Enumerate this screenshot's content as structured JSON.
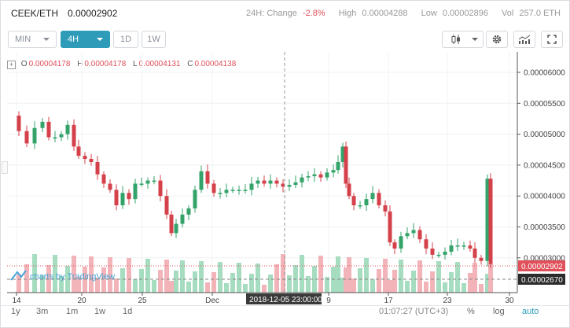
{
  "header": {
    "pair": "CEEK/ETH",
    "price": "0.00002902",
    "change_label": "24H: Change",
    "change_value": "-2.8%",
    "high_label": "High",
    "high_value": "0.00004288",
    "low_label": "Low",
    "low_value": "0.00002896",
    "vol_label": "Vol",
    "vol_value": "257.0 ETH"
  },
  "toolbar": {
    "min_label": "MIN",
    "interval_label": "4H",
    "day_label": "1D",
    "week_label": "1W",
    "icons": [
      "candlestick-icon",
      "gear-icon",
      "indicators-icon",
      "fullscreen-icon"
    ]
  },
  "ohlc": {
    "o_label": "O",
    "o_value": "0.00004178",
    "h_label": "H",
    "h_value": "0.00004178",
    "l_label": "L",
    "l_value": "0.00004131",
    "c_label": "C",
    "c_value": "0.00004138"
  },
  "y_axis": {
    "ticks": [
      "0.00006000",
      "0.00005500",
      "0.00005000",
      "0.00004500",
      "0.00004000",
      "0.00003500",
      "0.00003000"
    ],
    "last_price_label": "0.00002902",
    "last_price_color": "#e0505a",
    "low_line_label": "0.00002670"
  },
  "x_axis": {
    "ticks": [
      "14",
      "20",
      "25",
      "Dec",
      "9",
      "17",
      "23",
      "30"
    ],
    "crosshair_label": "2018-12-05 23:00:00"
  },
  "watermark": "charts by TradingView",
  "footer": {
    "ranges": [
      "1y",
      "3m",
      "1m",
      "1w",
      "1d"
    ],
    "clock": "01:07:27 (UTC+3)",
    "percent": "%",
    "log": "log",
    "auto": "auto"
  },
  "colors": {
    "up": "#33a36a",
    "down": "#d4414a",
    "accent": "#2e9cb9"
  }
}
